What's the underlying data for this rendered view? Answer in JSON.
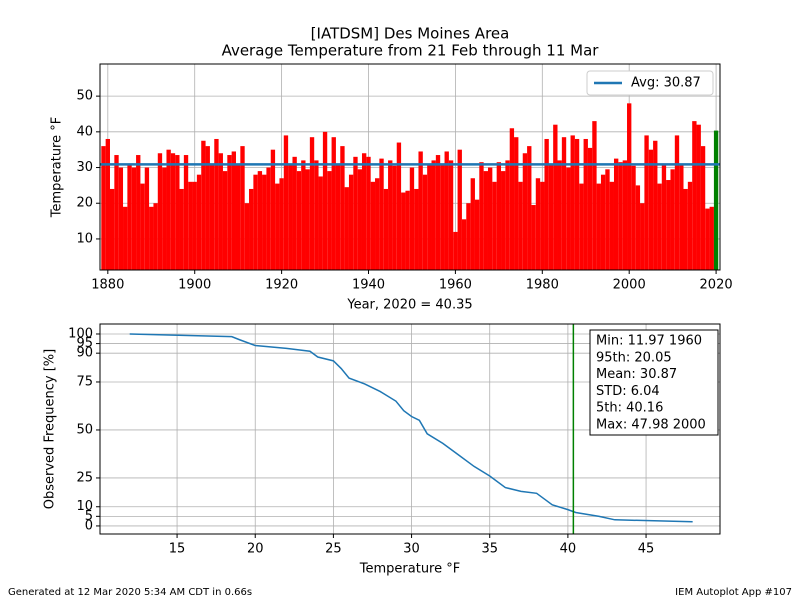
{
  "chart_data": [
    {
      "type": "bar",
      "title": [
        "[IATDSM] Des Moines Area",
        "Average Temperature from 21 Feb through 11 Mar"
      ],
      "xlabel": "Year, 2020 = 40.35",
      "ylabel": "Temperature  °F",
      "x": [
        1879,
        1880,
        1881,
        1882,
        1883,
        1884,
        1885,
        1886,
        1887,
        1888,
        1889,
        1890,
        1891,
        1892,
        1893,
        1894,
        1895,
        1896,
        1897,
        1898,
        1899,
        1900,
        1901,
        1902,
        1903,
        1904,
        1905,
        1906,
        1907,
        1908,
        1909,
        1910,
        1911,
        1912,
        1913,
        1914,
        1915,
        1916,
        1917,
        1918,
        1919,
        1920,
        1921,
        1922,
        1923,
        1924,
        1925,
        1926,
        1927,
        1928,
        1929,
        1930,
        1931,
        1932,
        1933,
        1934,
        1935,
        1936,
        1937,
        1938,
        1939,
        1940,
        1941,
        1942,
        1943,
        1944,
        1945,
        1946,
        1947,
        1948,
        1949,
        1950,
        1951,
        1952,
        1953,
        1954,
        1955,
        1956,
        1957,
        1958,
        1959,
        1960,
        1961,
        1962,
        1963,
        1964,
        1965,
        1966,
        1967,
        1968,
        1969,
        1970,
        1971,
        1972,
        1973,
        1974,
        1975,
        1976,
        1977,
        1978,
        1979,
        1980,
        1981,
        1982,
        1983,
        1984,
        1985,
        1986,
        1987,
        1988,
        1989,
        1990,
        1991,
        1992,
        1993,
        1994,
        1995,
        1996,
        1997,
        1998,
        1999,
        2000,
        2001,
        2002,
        2003,
        2004,
        2005,
        2006,
        2007,
        2008,
        2009,
        2010,
        2011,
        2012,
        2013,
        2014,
        2015,
        2016,
        2017,
        2018,
        2019,
        2020
      ],
      "values": [
        36,
        38,
        24,
        33.5,
        30,
        19,
        31,
        30,
        33.5,
        25.5,
        30,
        19,
        20,
        34,
        30,
        35,
        34,
        33.5,
        24,
        33.5,
        26,
        26,
        28,
        37.5,
        36,
        31,
        38,
        34,
        29,
        33.5,
        34.5,
        31,
        36,
        20,
        24,
        28,
        29,
        28,
        30,
        35,
        25.5,
        27,
        39,
        31,
        33,
        29,
        32,
        29.5,
        38.5,
        32,
        27.5,
        40,
        29,
        38.5,
        31,
        36,
        24.5,
        28,
        33,
        29.5,
        34,
        33,
        26,
        27,
        32.5,
        24,
        32,
        30.5,
        37,
        23,
        23.5,
        30,
        24,
        34.5,
        28,
        31,
        32,
        33.5,
        31,
        34.5,
        32,
        11.97,
        35,
        15.5,
        20,
        27,
        21,
        31.5,
        29,
        30,
        26,
        31.5,
        29,
        32,
        41,
        38.5,
        26,
        34,
        36,
        19.5,
        27,
        26,
        38,
        31,
        42,
        32,
        38.5,
        30,
        39,
        38,
        25.5,
        38,
        35.5,
        43,
        25.5,
        28,
        29.5,
        26,
        32.5,
        31.5,
        32,
        47.98,
        30.5,
        25,
        20,
        39,
        35,
        37.5,
        25.5,
        31,
        26.5,
        29.5,
        39,
        31,
        24,
        26,
        43,
        42,
        36,
        18.5,
        19,
        40.35
      ],
      "color": "#ff0000",
      "highlight_color": "#008000",
      "hline": {
        "name": "Avg: 30.87",
        "value": 30.87,
        "color": "#1f77b4"
      },
      "legend": "upper right",
      "xlim": [
        1878.2,
        2020.9
      ],
      "ylim": [
        1.3,
        59
      ],
      "xticks": [
        1880,
        1900,
        1920,
        1940,
        1960,
        1980,
        2000,
        2020
      ],
      "yticks": [
        10,
        20,
        30,
        40,
        50
      ],
      "grid": true
    },
    {
      "type": "line",
      "xlabel": "Temperature  °F",
      "ylabel": "Observed Frequency [%]",
      "x": [
        11.97,
        18.5,
        19,
        20,
        22,
        23.5,
        24,
        25,
        25.5,
        26,
        27,
        28,
        29,
        29.5,
        30,
        30.5,
        31,
        32,
        33,
        34,
        35,
        36,
        37,
        38,
        38.5,
        39,
        40,
        40.5,
        42,
        43,
        47.98
      ],
      "series": [
        {
          "color": "#1f77b4",
          "values": [
            100,
            98.6,
            97,
            94,
            92.5,
            91,
            88,
            86,
            82,
            77,
            74,
            70,
            65,
            60,
            57,
            55,
            48,
            43,
            37,
            31,
            26,
            20,
            18,
            17,
            14,
            11,
            8.5,
            7,
            5,
            3.2,
            2.2
          ]
        }
      ],
      "vline": {
        "value": 40.35,
        "color": "#008000"
      },
      "annotation": [
        "Min: 11.97 1960",
        "95th: 20.05",
        "Mean: 30.87",
        "STD: 6.04",
        "5th: 40.16",
        "Max: 47.98 2000"
      ],
      "xlim": [
        10.07,
        49.73
      ],
      "ylim": [
        -4.2,
        105.2
      ],
      "xticks": [
        15,
        20,
        25,
        30,
        35,
        40,
        45
      ],
      "yticks": [
        0,
        5,
        10,
        25,
        50,
        75,
        90,
        95,
        100
      ],
      "grid": true
    }
  ],
  "footer": {
    "left": "Generated at 12 Mar 2020 5:34 AM CDT in 0.66s",
    "right": "IEM Autoplot App #107"
  }
}
